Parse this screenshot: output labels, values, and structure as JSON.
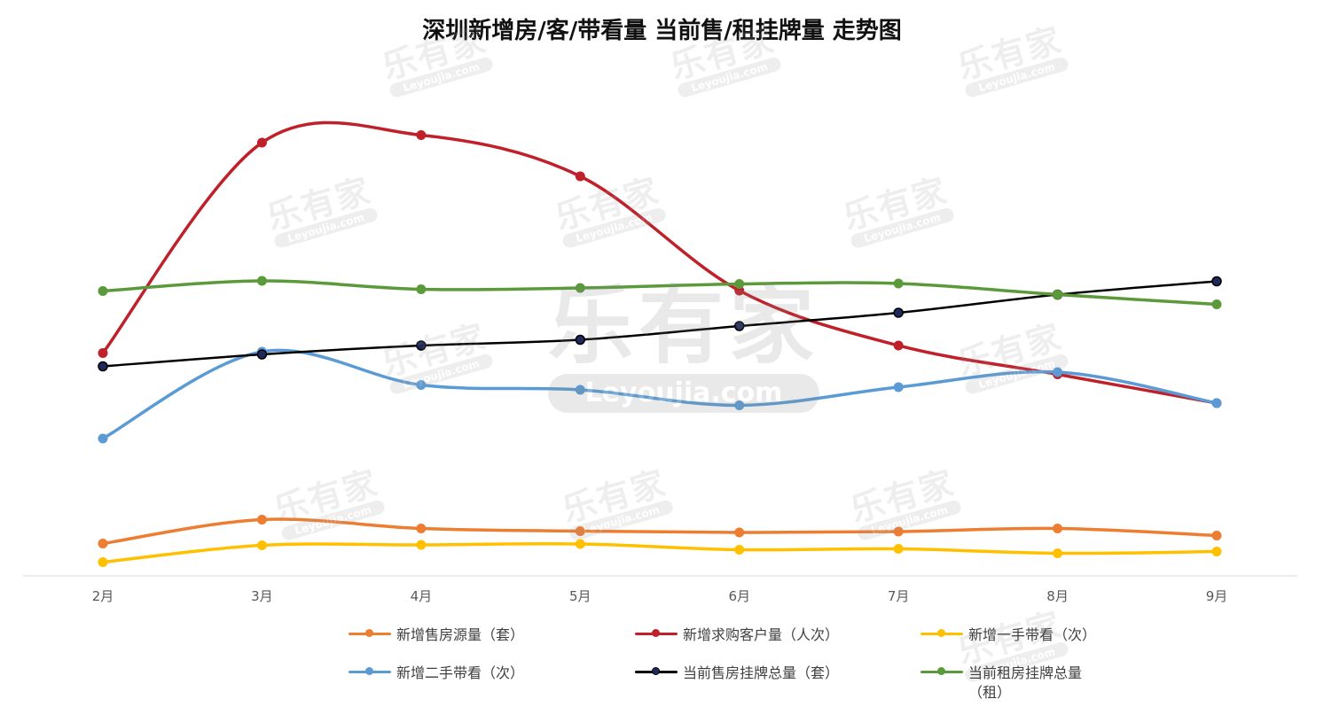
{
  "title": "深圳新增房/客/带看量 当前售/租挂牌量 走势图",
  "watermark": {
    "logo_text": "乐有家",
    "site": "Leyoujia.com"
  },
  "chart_data": {
    "type": "line",
    "title": "深圳新增房/客/带看量 当前售/租挂牌量 走势图",
    "categories": [
      "2月",
      "3月",
      "4月",
      "5月",
      "6月",
      "7月",
      "8月",
      "9月"
    ],
    "grid": false,
    "legend_position": "bottom",
    "smooth": true,
    "ylim": [
      0,
      100
    ],
    "series": [
      {
        "name": "新增售房源量（套）",
        "color": "#ED7D31",
        "marker": "#ED7D31",
        "values": [
          7.3,
          12.7,
          10.7,
          10.1,
          9.8,
          10.0,
          10.7,
          9.1
        ]
      },
      {
        "name": "新增求购客户量（人次）",
        "color": "#C0202A",
        "marker": "#C0202A",
        "values": [
          50.3,
          97.8,
          99.5,
          90.2,
          64.4,
          52.0,
          45.5,
          39.0
        ]
      },
      {
        "name": "新增一手带看（次）",
        "color": "#FFC000",
        "marker": "#FFC000",
        "values": [
          3.1,
          6.9,
          7.0,
          7.2,
          5.9,
          6.1,
          5.1,
          5.5
        ]
      },
      {
        "name": "新增二手带看（次）",
        "color": "#5B9BD5",
        "marker": "#5B9BD5",
        "values": [
          31.0,
          50.6,
          43.1,
          42.0,
          38.5,
          42.6,
          46.0,
          39.0
        ]
      },
      {
        "name": "当前售房挂牌总量（套）",
        "color": "#000000",
        "marker": "#1F2A5C",
        "values": [
          47.3,
          50.0,
          52.0,
          53.3,
          56.4,
          59.4,
          63.5,
          66.5
        ]
      },
      {
        "name": "当前租房挂牌总量（租）",
        "color": "#5B9A3A",
        "marker": "#5B9A3A",
        "values": [
          64.3,
          66.6,
          64.7,
          65.0,
          65.9,
          66.0,
          63.5,
          61.3
        ]
      }
    ]
  }
}
